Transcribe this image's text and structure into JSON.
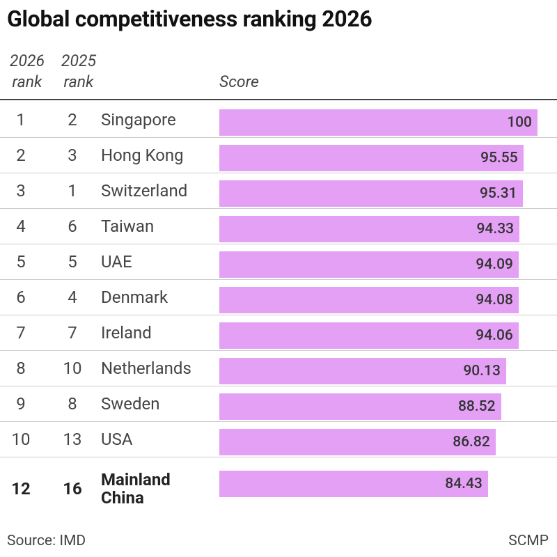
{
  "chart_data": {
    "type": "bar",
    "title": "Global competitiveness ranking 2026",
    "rank_2026_header": "2026 rank",
    "rank_2025_header": "2025 rank",
    "value_header": "Score",
    "categories": [
      "Singapore",
      "Hong Kong",
      "Switzerland",
      "Taiwan",
      "UAE",
      "Denmark",
      "Ireland",
      "Netherlands",
      "Sweden",
      "USA",
      "Mainland China"
    ],
    "rank_2026": [
      1,
      2,
      3,
      4,
      5,
      6,
      7,
      8,
      9,
      10,
      12
    ],
    "rank_2025": [
      2,
      3,
      1,
      6,
      5,
      4,
      7,
      10,
      8,
      13,
      16
    ],
    "values": [
      100,
      95.55,
      95.31,
      94.33,
      94.09,
      94.08,
      94.06,
      90.13,
      88.52,
      86.82,
      84.43
    ],
    "color": "#e4a0f5",
    "source": "Source: IMD",
    "credit": "SCMP"
  }
}
